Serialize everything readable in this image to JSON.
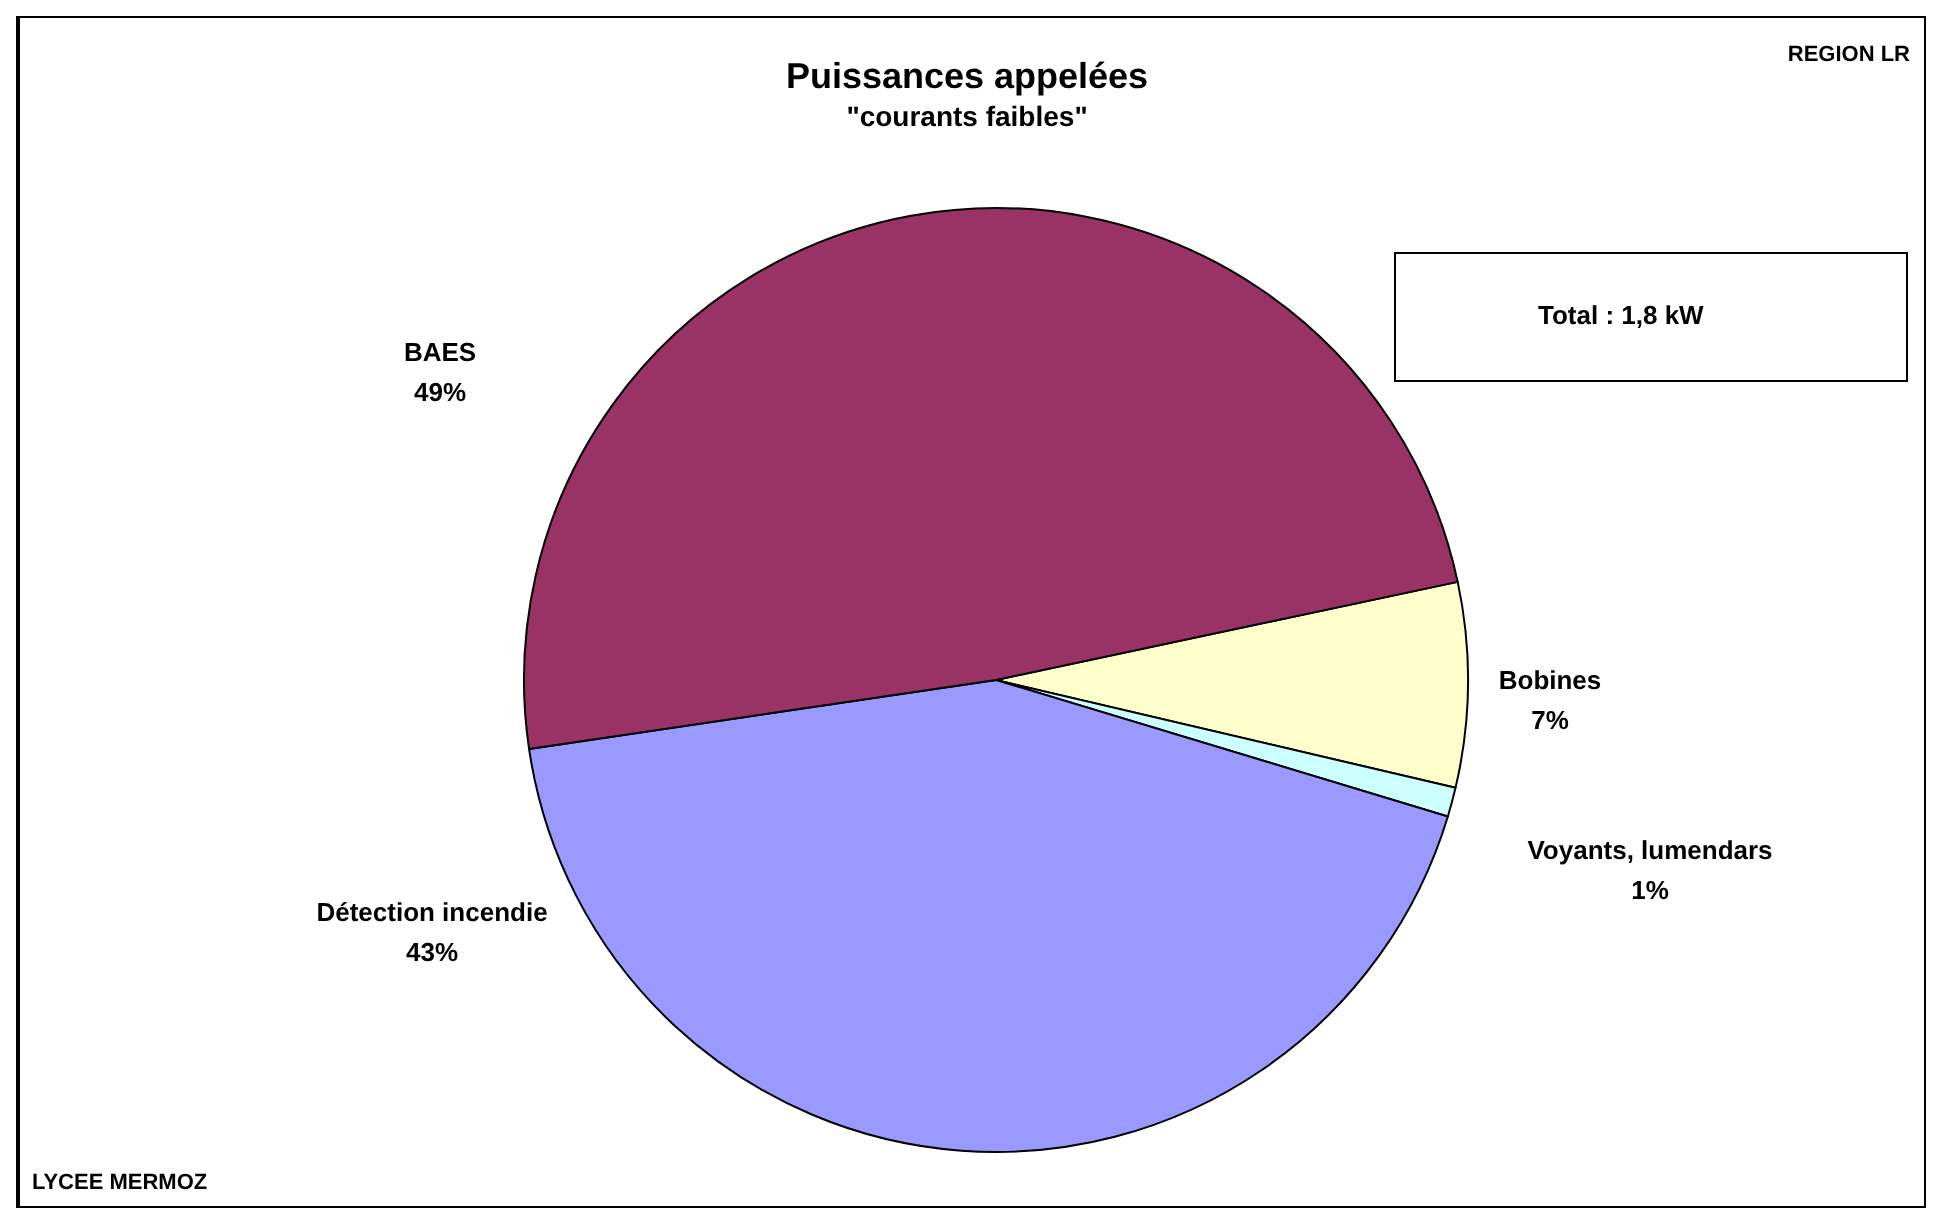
{
  "chart_data": {
    "type": "pie",
    "title": "Puissances appelées",
    "subtitle": "\"courants faibles\"",
    "categories": [
      "Bobines",
      "Voyants, lumendars",
      "Détection incendie",
      "BAES"
    ],
    "values": [
      7,
      1,
      43,
      49
    ],
    "value_labels": [
      "7%",
      "1%",
      "43%",
      "49%"
    ],
    "colors": [
      "#ffffcc",
      "#ccffff",
      "#9999ff",
      "#993366"
    ],
    "annotations": [
      "Total : 1,8 kW",
      "REGION LR",
      "LYCEE MERMOZ"
    ],
    "legend": false
  }
}
